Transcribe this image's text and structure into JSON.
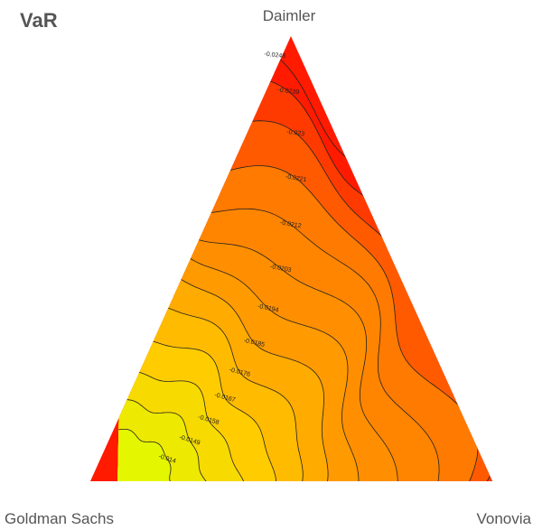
{
  "chart_data": {
    "type": "ternary-contour",
    "title": "VaR",
    "corners": [
      "Daimler",
      "Goldman Sachs",
      "Vonovia"
    ],
    "levels": [
      -0.014,
      -0.0149,
      -0.0158,
      -0.0167,
      -0.0176,
      -0.0185,
      -0.0194,
      -0.0203,
      -0.0212,
      -0.0221,
      -0.023,
      -0.0239,
      -0.0248
    ],
    "colormap": [
      "#e4f700",
      "#ffcc00",
      "#ff9a00",
      "#ff7a00",
      "#ff1a00"
    ],
    "line_color": "#222222"
  }
}
